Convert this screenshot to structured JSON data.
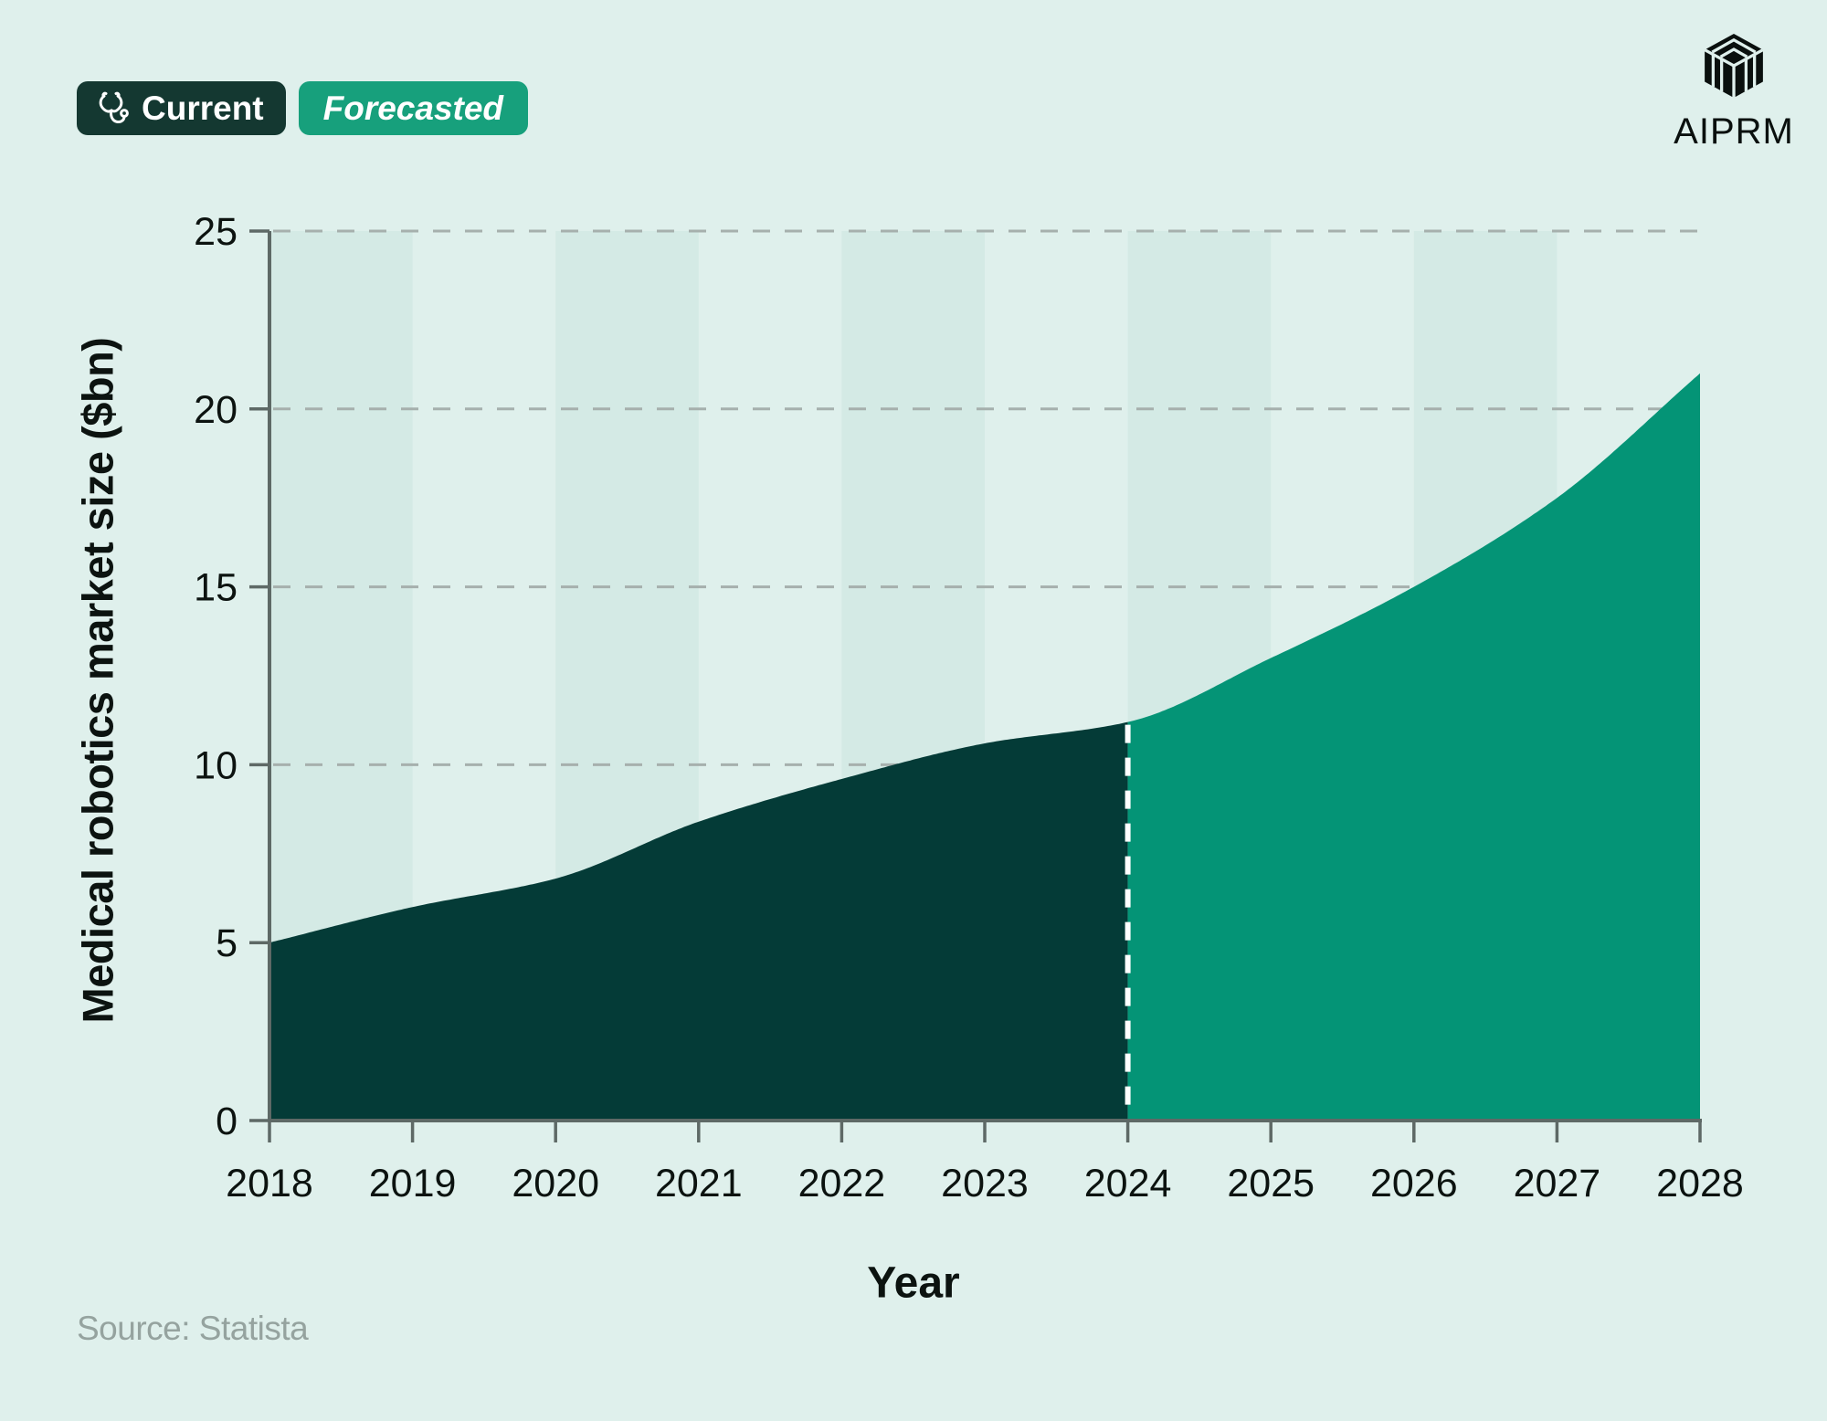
{
  "legend": {
    "current": {
      "label": "Current",
      "bg": "#143831",
      "icon": "stethoscope-icon"
    },
    "forecasted": {
      "label": "Forecasted",
      "bg": "#17A07C"
    }
  },
  "logo": {
    "text": "AIPRM"
  },
  "source_note": "Source: Statista",
  "chart_data": {
    "type": "area",
    "title": "",
    "xlabel": "Year",
    "ylabel": "Medical robotics market size ($bn)",
    "x": [
      2018,
      2019,
      2020,
      2021,
      2022,
      2023,
      2024,
      2025,
      2026,
      2027,
      2028
    ],
    "series": [
      {
        "name": "Current",
        "color": "#043B37",
        "x": [
          2018,
          2019,
          2020,
          2021,
          2022,
          2023,
          2024
        ],
        "values": [
          5.0,
          6.0,
          6.8,
          8.4,
          9.6,
          10.6,
          11.2
        ]
      },
      {
        "name": "Forecasted",
        "color": "#049476",
        "x": [
          2024,
          2025,
          2026,
          2027,
          2028
        ],
        "values": [
          11.2,
          13.0,
          15.0,
          17.5,
          21.0
        ]
      }
    ],
    "ylim": [
      0,
      25
    ],
    "yticks": [
      0,
      5,
      10,
      15,
      20,
      25
    ],
    "grid": "dashed-horizontal",
    "legend_position": "top-left",
    "background_bands": [
      [
        2018,
        2019
      ],
      [
        2020,
        2021
      ],
      [
        2022,
        2023
      ],
      [
        2024,
        2025
      ],
      [
        2026,
        2027
      ]
    ],
    "divider_year": 2024,
    "colors": {
      "page_background": "#DFF0EC",
      "band": "#D4EAE5",
      "gridline": "#A6B0AD",
      "axis": "#5E6966",
      "divider": "#FFFFFF",
      "tick_label": "#0C1310",
      "source_text": "#95A39F"
    }
  }
}
